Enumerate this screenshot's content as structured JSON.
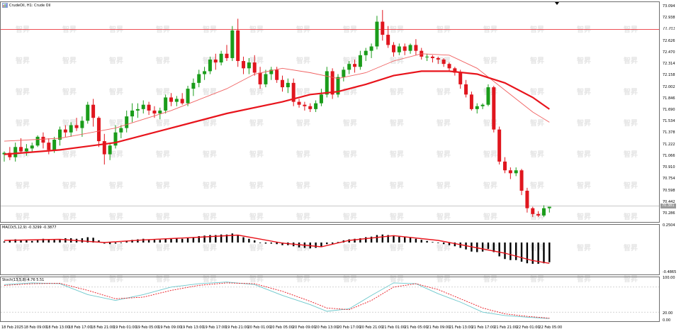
{
  "window": {
    "title": "CrudeOil, H1: Crude Oil"
  },
  "colors": {
    "bull": "#1a9c1a",
    "bear": "#e0161e",
    "ma_fast": "#f06060",
    "ma_slow": "#e8141c",
    "macd_hist": "#000000",
    "macd_signal": "#e8141c",
    "stoch_main": "#6cc8cc",
    "stoch_signal": "#e8141c",
    "ask_line": "#e8141c",
    "bid_line": "#909090"
  },
  "price_axis": {
    "labels": [
      "73.094",
      "72.938",
      "72.782",
      "72.626",
      "72.470",
      "72.314",
      "72.158",
      "72.002",
      "71.846",
      "71.690",
      "71.534",
      "71.378",
      "71.222",
      "71.066",
      "70.910",
      "70.754",
      "70.598",
      "70.442",
      "70.286"
    ],
    "ask_tag": "72.794",
    "bid_tag": "70.381"
  },
  "macd": {
    "title": "MACD(5,12,9) -0.3299 -0.3877",
    "axis_top": "0.2504",
    "axis_bottom": "-0.4865"
  },
  "stoch": {
    "title": "Stoch(13,5,8) 4.76 5.51",
    "axis_top": "100.00",
    "axis_bottom": "20.00",
    "axis_low": "0.00"
  },
  "time_axis": [
    "18 Feb 2025",
    "18 Feb 09:00",
    "18 Feb 13:00",
    "18 Feb 17:00",
    "18 Feb 21:00",
    "19 Feb 01:00",
    "19 Feb 05:00",
    "19 Feb 09:00",
    "19 Feb 13:00",
    "19 Feb 17:00",
    "19 Feb 21:00",
    "20 Feb 01:00",
    "20 Feb 05:00",
    "20 Feb 09:00",
    "20 Feb 13:00",
    "20 Feb 17:00",
    "20 Feb 21:00",
    "21 Feb 01:00",
    "21 Feb 05:00",
    "21 Feb 09:00",
    "21 Feb 13:00",
    "21 Feb 17:00",
    "21 Feb 21:00",
    "22 Feb 01:00",
    "22 Feb 05:00"
  ],
  "watermark": "智昇",
  "chart_data": {
    "type": "candlestick",
    "timeframe": "H1",
    "ylim": [
      70.22,
      73.12
    ],
    "candles": [
      [
        71.1,
        71.14,
        71.0,
        71.12
      ],
      [
        71.12,
        71.2,
        71.02,
        71.06
      ],
      [
        71.06,
        71.26,
        71.0,
        71.2
      ],
      [
        71.2,
        71.32,
        71.12,
        71.14
      ],
      [
        71.14,
        71.24,
        71.08,
        71.18
      ],
      [
        71.18,
        71.26,
        71.14,
        71.22
      ],
      [
        71.22,
        71.36,
        71.2,
        71.34
      ],
      [
        71.34,
        71.4,
        71.18,
        71.26
      ],
      [
        71.26,
        71.32,
        71.1,
        71.16
      ],
      [
        71.16,
        71.34,
        71.12,
        71.3
      ],
      [
        71.3,
        71.48,
        71.22,
        71.44
      ],
      [
        71.44,
        71.5,
        71.34,
        71.4
      ],
      [
        71.4,
        71.54,
        71.34,
        71.5
      ],
      [
        71.5,
        71.6,
        71.42,
        71.46
      ],
      [
        71.46,
        71.62,
        71.34,
        71.56
      ],
      [
        71.56,
        71.82,
        71.52,
        71.78
      ],
      [
        71.78,
        71.86,
        71.48,
        71.6
      ],
      [
        71.6,
        71.62,
        71.2,
        71.28
      ],
      [
        71.28,
        71.38,
        70.96,
        71.1
      ],
      [
        71.1,
        71.26,
        71.02,
        71.22
      ],
      [
        71.22,
        71.5,
        71.18,
        71.4
      ],
      [
        71.4,
        71.5,
        71.32,
        71.46
      ],
      [
        71.46,
        71.7,
        71.4,
        71.62
      ],
      [
        71.62,
        71.8,
        71.54,
        71.7
      ],
      [
        71.7,
        71.8,
        71.6,
        71.72
      ],
      [
        71.72,
        71.84,
        71.66,
        71.78
      ],
      [
        71.78,
        71.82,
        71.64,
        71.7
      ],
      [
        71.7,
        71.76,
        71.6,
        71.66
      ],
      [
        71.66,
        71.74,
        71.58,
        71.7
      ],
      [
        71.7,
        71.92,
        71.66,
        71.88
      ],
      [
        71.88,
        71.94,
        71.76,
        71.82
      ],
      [
        71.82,
        71.9,
        71.76,
        71.86
      ],
      [
        71.86,
        71.94,
        71.78,
        71.8
      ],
      [
        71.8,
        72.04,
        71.76,
        72.0
      ],
      [
        72.0,
        72.14,
        71.9,
        72.08
      ],
      [
        72.08,
        72.26,
        72.02,
        72.2
      ],
      [
        72.2,
        72.3,
        72.12,
        72.24
      ],
      [
        72.24,
        72.44,
        72.2,
        72.4
      ],
      [
        72.4,
        72.48,
        72.26,
        72.36
      ],
      [
        72.36,
        72.52,
        72.32,
        72.48
      ],
      [
        72.48,
        72.6,
        72.38,
        72.42
      ],
      [
        72.42,
        72.86,
        72.38,
        72.8
      ],
      [
        72.8,
        72.96,
        72.3,
        72.38
      ],
      [
        72.38,
        72.44,
        72.2,
        72.28
      ],
      [
        72.28,
        72.42,
        72.2,
        72.36
      ],
      [
        72.36,
        72.46,
        72.18,
        72.22
      ],
      [
        72.22,
        72.3,
        72.0,
        72.06
      ],
      [
        72.06,
        72.26,
        72.02,
        72.2
      ],
      [
        72.2,
        72.3,
        72.12,
        72.26
      ],
      [
        72.26,
        72.3,
        72.08,
        72.12
      ],
      [
        72.12,
        72.18,
        71.96,
        72.02
      ],
      [
        72.02,
        72.14,
        71.94,
        72.08
      ],
      [
        72.08,
        72.14,
        71.76,
        71.82
      ],
      [
        71.82,
        71.86,
        71.74,
        71.78
      ],
      [
        71.78,
        71.82,
        71.7,
        71.76
      ],
      [
        71.76,
        71.8,
        71.68,
        71.72
      ],
      [
        71.72,
        71.84,
        71.68,
        71.8
      ],
      [
        71.8,
        72.0,
        71.76,
        71.92
      ],
      [
        71.92,
        72.3,
        71.88,
        72.24
      ],
      [
        72.24,
        72.28,
        71.86,
        71.92
      ],
      [
        71.92,
        72.2,
        71.88,
        72.16
      ],
      [
        72.16,
        72.3,
        72.1,
        72.26
      ],
      [
        72.26,
        72.38,
        72.2,
        72.34
      ],
      [
        72.34,
        72.4,
        72.22,
        72.3
      ],
      [
        72.3,
        72.52,
        72.26,
        72.46
      ],
      [
        72.46,
        72.56,
        72.38,
        72.52
      ],
      [
        72.52,
        72.62,
        72.42,
        72.58
      ],
      [
        72.58,
        73.0,
        72.54,
        72.92
      ],
      [
        72.92,
        73.08,
        72.66,
        72.74
      ],
      [
        72.74,
        72.86,
        72.56,
        72.6
      ],
      [
        72.6,
        72.64,
        72.44,
        72.5
      ],
      [
        72.5,
        72.62,
        72.46,
        72.58
      ],
      [
        72.58,
        72.62,
        72.46,
        72.52
      ],
      [
        72.52,
        72.62,
        72.48,
        72.6
      ],
      [
        72.6,
        72.68,
        72.46,
        72.52
      ],
      [
        72.52,
        72.56,
        72.4,
        72.44
      ],
      [
        72.44,
        72.48,
        72.38,
        72.44
      ],
      [
        72.44,
        72.46,
        72.36,
        72.42
      ],
      [
        72.42,
        72.44,
        72.34,
        72.4
      ],
      [
        72.4,
        72.42,
        72.3,
        72.34
      ],
      [
        72.34,
        72.36,
        72.24,
        72.28
      ],
      [
        72.28,
        72.3,
        72.18,
        72.22
      ],
      [
        72.22,
        72.26,
        72.0,
        72.06
      ],
      [
        72.06,
        72.12,
        71.88,
        71.92
      ],
      [
        71.92,
        71.96,
        71.7,
        71.72
      ],
      [
        71.72,
        71.8,
        71.66,
        71.76
      ],
      [
        71.76,
        71.8,
        71.72,
        71.78
      ],
      [
        71.78,
        72.06,
        71.76,
        72.02
      ],
      [
        72.02,
        72.04,
        71.4,
        71.44
      ],
      [
        71.44,
        71.48,
        70.96,
        71.0
      ],
      [
        71.0,
        71.06,
        70.84,
        70.88
      ],
      [
        70.88,
        70.92,
        70.76,
        70.84
      ],
      [
        70.84,
        70.92,
        70.8,
        70.88
      ],
      [
        70.88,
        70.9,
        70.54,
        70.6
      ],
      [
        70.6,
        70.64,
        70.3,
        70.36
      ],
      [
        70.36,
        70.38,
        70.24,
        70.28
      ],
      [
        70.28,
        70.32,
        70.24,
        70.26
      ],
      [
        70.26,
        70.4,
        70.24,
        70.36
      ],
      [
        70.36,
        70.38,
        70.3,
        70.38
      ]
    ],
    "ma_fast_points": [
      [
        0,
        71.28
      ],
      [
        10,
        71.32
      ],
      [
        20,
        71.46
      ],
      [
        30,
        71.7
      ],
      [
        40,
        72.0
      ],
      [
        45,
        72.2
      ],
      [
        50,
        72.28
      ],
      [
        55,
        72.22
      ],
      [
        60,
        72.14
      ],
      [
        65,
        72.22
      ],
      [
        70,
        72.38
      ],
      [
        75,
        72.48
      ],
      [
        80,
        72.46
      ],
      [
        85,
        72.28
      ],
      [
        90,
        71.98
      ],
      [
        95,
        71.68
      ],
      [
        98,
        71.54
      ]
    ],
    "ma_slow_points": [
      [
        0,
        71.1
      ],
      [
        10,
        71.16
      ],
      [
        20,
        71.26
      ],
      [
        30,
        71.46
      ],
      [
        40,
        71.66
      ],
      [
        50,
        71.82
      ],
      [
        55,
        71.92
      ],
      [
        60,
        71.96
      ],
      [
        65,
        72.06
      ],
      [
        70,
        72.18
      ],
      [
        75,
        72.24
      ],
      [
        80,
        72.24
      ],
      [
        85,
        72.2
      ],
      [
        90,
        72.08
      ],
      [
        95,
        71.88
      ],
      [
        98,
        71.72
      ]
    ],
    "macd_hist": [
      0.02,
      0.05,
      0.06,
      0.05,
      0.04,
      0.03,
      0.05,
      0.07,
      0.06,
      0.05,
      0.06,
      0.08,
      0.08,
      0.07,
      0.08,
      0.1,
      0.09,
      0.04,
      -0.02,
      -0.03,
      -0.02,
      0.0,
      0.03,
      0.05,
      0.06,
      0.07,
      0.06,
      0.05,
      0.05,
      0.07,
      0.08,
      0.08,
      0.07,
      0.08,
      0.1,
      0.12,
      0.13,
      0.14,
      0.14,
      0.15,
      0.15,
      0.17,
      0.14,
      0.1,
      0.07,
      0.04,
      0.0,
      -0.02,
      -0.02,
      -0.03,
      -0.05,
      -0.05,
      -0.07,
      -0.09,
      -0.1,
      -0.11,
      -0.1,
      -0.08,
      -0.03,
      -0.02,
      0.01,
      0.04,
      0.06,
      0.07,
      0.08,
      0.1,
      0.11,
      0.14,
      0.15,
      0.14,
      0.12,
      0.11,
      0.1,
      0.09,
      0.07,
      0.05,
      0.03,
      0.01,
      -0.01,
      -0.03,
      -0.05,
      -0.07,
      -0.1,
      -0.13,
      -0.17,
      -0.18,
      -0.17,
      -0.12,
      -0.18,
      -0.26,
      -0.31,
      -0.33,
      -0.33,
      -0.36,
      -0.39,
      -0.4,
      -0.4,
      -0.39,
      -0.37
    ],
    "macd_signal_points": [
      [
        0,
        0.04
      ],
      [
        10,
        0.06
      ],
      [
        18,
        0.0
      ],
      [
        25,
        0.05
      ],
      [
        35,
        0.1
      ],
      [
        42,
        0.14
      ],
      [
        50,
        -0.01
      ],
      [
        57,
        -0.08
      ],
      [
        62,
        0.04
      ],
      [
        70,
        0.13
      ],
      [
        78,
        0.04
      ],
      [
        85,
        -0.1
      ],
      [
        90,
        -0.2
      ],
      [
        95,
        -0.34
      ],
      [
        98,
        -0.39
      ]
    ],
    "stoch_main_points": [
      [
        0,
        86
      ],
      [
        5,
        90
      ],
      [
        10,
        88
      ],
      [
        15,
        62
      ],
      [
        20,
        48
      ],
      [
        25,
        62
      ],
      [
        30,
        80
      ],
      [
        35,
        88
      ],
      [
        40,
        92
      ],
      [
        45,
        86
      ],
      [
        50,
        60
      ],
      [
        55,
        38
      ],
      [
        58,
        22
      ],
      [
        62,
        28
      ],
      [
        66,
        60
      ],
      [
        70,
        90
      ],
      [
        74,
        88
      ],
      [
        78,
        64
      ],
      [
        82,
        44
      ],
      [
        86,
        20
      ],
      [
        90,
        12
      ],
      [
        94,
        8
      ],
      [
        98,
        4.76
      ]
    ],
    "stoch_signal_points": [
      [
        0,
        84
      ],
      [
        5,
        88
      ],
      [
        10,
        89
      ],
      [
        15,
        72
      ],
      [
        20,
        52
      ],
      [
        25,
        56
      ],
      [
        30,
        72
      ],
      [
        35,
        84
      ],
      [
        40,
        90
      ],
      [
        45,
        88
      ],
      [
        50,
        70
      ],
      [
        55,
        46
      ],
      [
        58,
        30
      ],
      [
        62,
        26
      ],
      [
        66,
        48
      ],
      [
        70,
        80
      ],
      [
        74,
        88
      ],
      [
        78,
        74
      ],
      [
        82,
        52
      ],
      [
        86,
        30
      ],
      [
        90,
        16
      ],
      [
        94,
        10
      ],
      [
        98,
        5.51
      ]
    ]
  }
}
